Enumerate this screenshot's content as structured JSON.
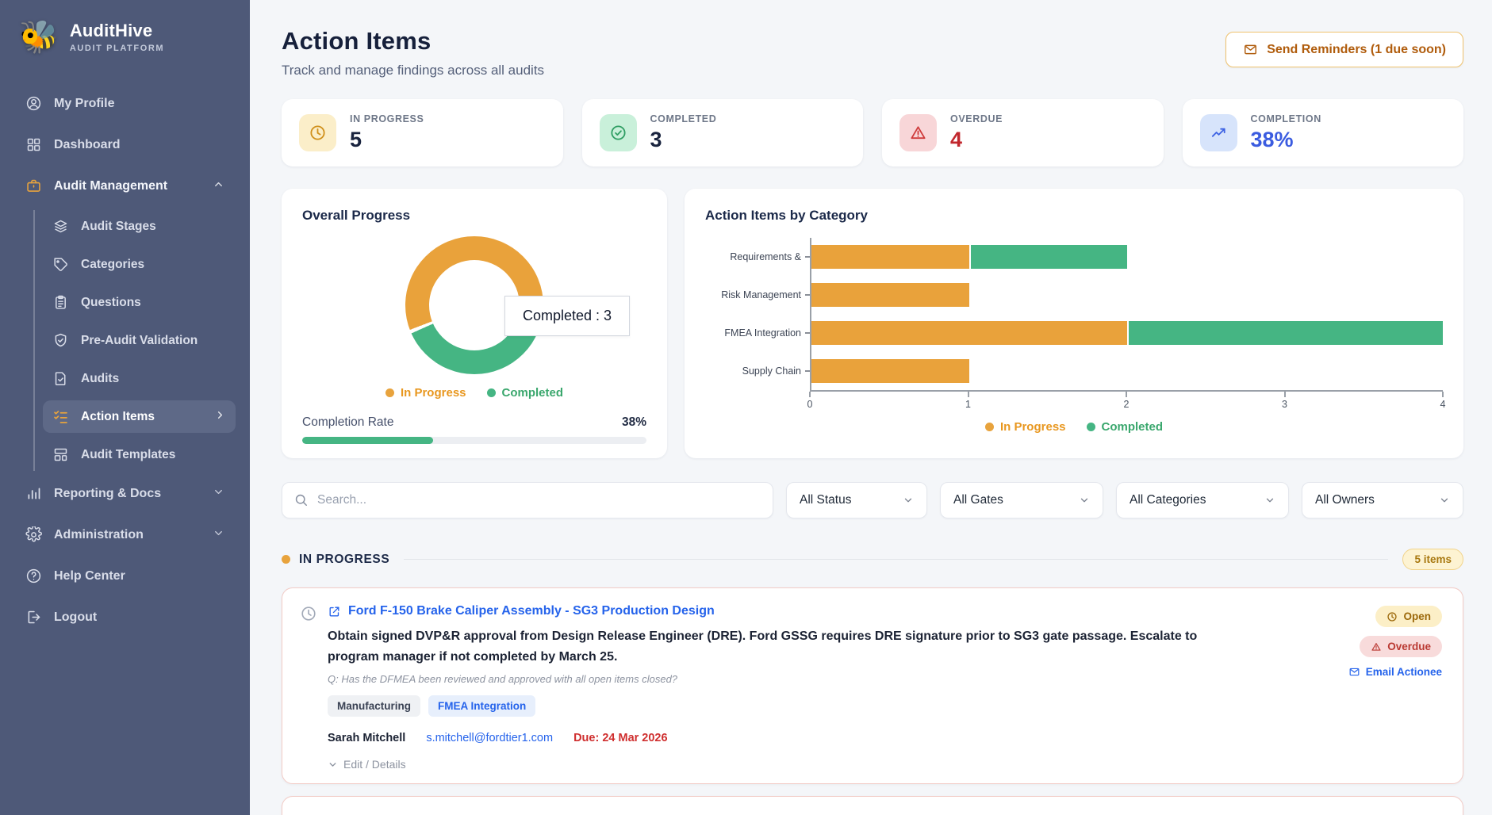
{
  "app": {
    "name": "AuditHive",
    "tagline": "AUDIT PLATFORM"
  },
  "sidebar": {
    "profile": "My Profile",
    "dashboard": "Dashboard",
    "audit_management": "Audit Management",
    "children": [
      "Audit Stages",
      "Categories",
      "Questions",
      "Pre-Audit Validation",
      "Audits",
      "Action Items",
      "Audit Templates"
    ],
    "reporting": "Reporting & Docs",
    "administration": "Administration",
    "help": "Help Center",
    "logout": "Logout"
  },
  "header": {
    "title": "Action Items",
    "subtitle": "Track and manage findings across all audits",
    "reminders_label": "Send Reminders (1 due soon)"
  },
  "stats": {
    "cards": [
      {
        "label": "IN PROGRESS",
        "value": "5",
        "icon": "clock-icon"
      },
      {
        "label": "COMPLETED",
        "value": "3",
        "icon": "check-circle-icon"
      },
      {
        "label": "OVERDUE",
        "value": "4",
        "icon": "warning-icon"
      },
      {
        "label": "COMPLETION",
        "value": "38%",
        "icon": "trend-up-icon"
      }
    ]
  },
  "chart_data": [
    {
      "type": "pie",
      "title": "Overall Progress",
      "series": [
        {
          "name": "In Progress",
          "value": 5
        },
        {
          "name": "Completed",
          "value": 3
        }
      ],
      "colors": {
        "in_progress": "#e9a23b",
        "completed": "#45b583"
      },
      "tooltip": "Completed : 3",
      "legend": [
        "In Progress",
        "Completed"
      ],
      "legend_position": "bottom",
      "completion_rate_label": "Completion Rate",
      "completion_rate_text": "38%",
      "completion_rate_pct": 38
    },
    {
      "type": "bar",
      "title": "Action Items by Category",
      "orientation": "horizontal",
      "stacked": true,
      "categories": [
        "Requirements &",
        "Risk Management",
        "FMEA Integration",
        "Supply Chain"
      ],
      "series": [
        {
          "name": "In Progress",
          "values": [
            1,
            1,
            2,
            1
          ],
          "color": "#e9a23b"
        },
        {
          "name": "Completed",
          "values": [
            1,
            0,
            2,
            0
          ],
          "color": "#45b583"
        }
      ],
      "xlim": [
        0,
        4
      ],
      "xticks": [
        0,
        1,
        2,
        3,
        4
      ],
      "grid": false,
      "legend": [
        "In Progress",
        "Completed"
      ],
      "legend_position": "bottom"
    }
  ],
  "filters": {
    "search_placeholder": "Search...",
    "status": "All Status",
    "gates": "All Gates",
    "categories": "All Categories",
    "owners": "All Owners"
  },
  "section": {
    "title": "IN PROGRESS",
    "count": "5 items"
  },
  "action_item": {
    "title": "Ford F-150 Brake Caliper Assembly - SG3 Production Design",
    "description": "Obtain signed DVP&R approval from Design Release Engineer (DRE). Ford GSSG requires DRE signature prior to SG3 gate passage. Escalate to program manager if not completed by March 25.",
    "question": "Q: Has the DFMEA been reviewed and approved with all open items closed?",
    "tags": [
      {
        "label": "Manufacturing",
        "style": "gray"
      },
      {
        "label": "FMEA Integration",
        "style": "blue"
      }
    ],
    "owner": "Sarah Mitchell",
    "email": "s.mitchell@fordtier1.com",
    "due": "Due: 24 Mar 2026",
    "expand_label": "Edit / Details",
    "status_badge": "Open",
    "overdue_badge": "Overdue",
    "email_action": "Email Actionee"
  },
  "colors": {
    "accent_orange": "#e9a23b",
    "accent_green": "#45b583",
    "link_blue": "#2563eb",
    "overdue_red": "#c0392b",
    "sidebar_bg": "#4e5978"
  }
}
